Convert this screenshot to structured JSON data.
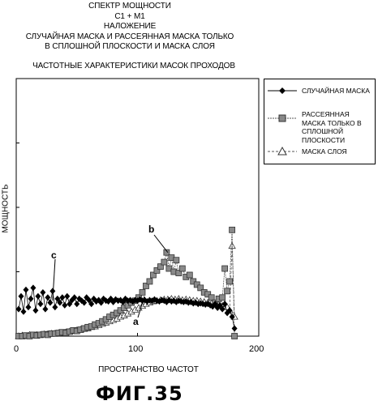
{
  "header": {
    "lines": [
      "СПЕКТР МОЩНОСТИ",
      "C1 + M1",
      "НАЛОЖЕНИЕ",
      "СЛУЧАЙНАЯ МАСКА И РАССЕЯННАЯ МАСКА ТОЛЬКО",
      "В СПЛОШНОЙ ПЛОСКОСТИ И МАСКА СЛОЯ"
    ],
    "subtitle": "ЧАСТОТНЫЕ ХАРАКТЕРИСТИКИ МАСОК ПРОХОДОВ"
  },
  "figure_caption": "ФИГ.35",
  "chart_data": {
    "type": "scatter",
    "title": "СПЕКТР МОЩНОСТИ",
    "xlabel": "ПРОСТРАНСТВО ЧАСТОТ",
    "ylabel": "МОЩНОСТЬ",
    "xlim": [
      0,
      200
    ],
    "ylim": [
      0,
      4
    ],
    "x_ticks": [
      "0",
      "100",
      "200"
    ],
    "legend_position": "right",
    "grid": false,
    "annotations": [
      {
        "text": "a",
        "series": "МАСКА СЛОЯ",
        "x": 115,
        "y": 0.62
      },
      {
        "text": "b",
        "series": "РАССЕЯННАЯ МАСКА ТОЛЬКО В СПЛОШНОЙ ПЛОСКОСТИ",
        "x": 125,
        "y": 1.3
      },
      {
        "text": "c",
        "series": "СЛУЧАЙНАЯ МАСКА",
        "x": 30,
        "y": 0.55
      }
    ],
    "series": [
      {
        "name": "СЛУЧАЙНАЯ МАСКА",
        "marker": "diamond",
        "color": "#000000",
        "x": [
          2,
          4,
          6,
          8,
          10,
          12,
          14,
          16,
          18,
          20,
          22,
          24,
          26,
          28,
          30,
          32,
          34,
          36,
          38,
          40,
          42,
          44,
          46,
          48,
          50,
          52,
          54,
          56,
          58,
          60,
          62,
          64,
          66,
          68,
          70,
          72,
          74,
          76,
          78,
          80,
          82,
          84,
          86,
          88,
          90,
          92,
          94,
          96,
          98,
          100,
          102,
          104,
          106,
          108,
          110,
          112,
          114,
          116,
          118,
          120,
          122,
          124,
          126,
          128,
          130,
          132,
          134,
          136,
          138,
          140,
          142,
          144,
          146,
          148,
          150,
          152,
          154,
          156,
          158,
          160,
          162,
          164,
          166,
          168,
          170,
          172,
          174,
          176,
          178,
          180
        ],
        "y": [
          0.42,
          0.62,
          0.38,
          0.72,
          0.45,
          0.58,
          0.75,
          0.4,
          0.62,
          0.5,
          0.68,
          0.42,
          0.6,
          0.52,
          0.7,
          0.45,
          0.58,
          0.52,
          0.6,
          0.48,
          0.62,
          0.5,
          0.56,
          0.6,
          0.5,
          0.58,
          0.55,
          0.52,
          0.6,
          0.56,
          0.5,
          0.58,
          0.54,
          0.56,
          0.52,
          0.58,
          0.55,
          0.54,
          0.58,
          0.53,
          0.57,
          0.55,
          0.56,
          0.53,
          0.58,
          0.55,
          0.56,
          0.54,
          0.56,
          0.55,
          0.57,
          0.55,
          0.56,
          0.54,
          0.56,
          0.55,
          0.57,
          0.55,
          0.54,
          0.56,
          0.55,
          0.53,
          0.56,
          0.54,
          0.55,
          0.53,
          0.55,
          0.54,
          0.53,
          0.54,
          0.52,
          0.53,
          0.51,
          0.52,
          0.5,
          0.51,
          0.5,
          0.49,
          0.5,
          0.48,
          0.46,
          0.5,
          0.44,
          0.48,
          0.42,
          0.5,
          0.36,
          0.4,
          0.3,
          0.12
        ]
      },
      {
        "name": "РАССЕЯННАЯ МАСКА ТОЛЬКО В СПЛОШНОЙ ПЛОСКОСТИ",
        "marker": "square",
        "color": "#555555",
        "x": [
          2,
          5,
          8,
          11,
          14,
          17,
          20,
          23,
          26,
          29,
          32,
          35,
          38,
          41,
          44,
          47,
          50,
          53,
          56,
          59,
          62,
          65,
          68,
          71,
          74,
          77,
          80,
          83,
          86,
          89,
          92,
          95,
          98,
          101,
          104,
          107,
          110,
          113,
          116,
          119,
          122,
          124,
          126,
          128,
          130,
          132,
          134,
          137,
          140,
          143,
          146,
          149,
          152,
          155,
          158,
          161,
          164,
          167,
          170,
          172,
          174,
          176,
          178,
          180
        ],
        "y": [
          0.0,
          0.0,
          0.01,
          0.0,
          0.02,
          0.01,
          0.02,
          0.03,
          0.02,
          0.04,
          0.04,
          0.05,
          0.06,
          0.05,
          0.07,
          0.09,
          0.08,
          0.1,
          0.12,
          0.14,
          0.15,
          0.18,
          0.2,
          0.23,
          0.26,
          0.3,
          0.33,
          0.36,
          0.4,
          0.44,
          0.48,
          0.52,
          0.55,
          0.6,
          0.68,
          0.78,
          0.85,
          0.95,
          1.02,
          1.08,
          1.15,
          1.3,
          1.05,
          1.22,
          1.0,
          1.18,
          0.98,
          1.05,
          0.92,
          0.95,
          0.85,
          0.8,
          0.75,
          0.68,
          0.65,
          0.6,
          0.52,
          0.58,
          0.6,
          1.05,
          0.7,
          0.85,
          1.65,
          0.0
        ]
      },
      {
        "name": "МАСКА СЛОЯ",
        "marker": "triangle",
        "color": "#555555",
        "x": [
          2,
          5,
          8,
          11,
          14,
          17,
          20,
          23,
          26,
          29,
          32,
          35,
          38,
          41,
          44,
          47,
          50,
          53,
          56,
          59,
          62,
          65,
          68,
          71,
          74,
          77,
          80,
          83,
          86,
          89,
          92,
          95,
          98,
          101,
          104,
          107,
          110,
          113,
          116,
          119,
          122,
          125,
          128,
          131,
          134,
          137,
          140,
          143,
          146,
          149,
          152,
          155,
          158,
          161,
          164,
          167,
          170,
          172,
          174,
          176,
          178,
          180
        ],
        "y": [
          0.0,
          0.01,
          0.0,
          0.02,
          0.01,
          0.02,
          0.02,
          0.03,
          0.03,
          0.04,
          0.04,
          0.05,
          0.05,
          0.06,
          0.07,
          0.08,
          0.09,
          0.1,
          0.11,
          0.12,
          0.14,
          0.15,
          0.17,
          0.19,
          0.21,
          0.23,
          0.25,
          0.27,
          0.3,
          0.32,
          0.35,
          0.38,
          0.41,
          0.44,
          0.47,
          0.5,
          0.52,
          0.54,
          0.55,
          0.56,
          0.57,
          0.57,
          0.58,
          0.57,
          0.58,
          0.56,
          0.57,
          0.56,
          0.55,
          0.55,
          0.54,
          0.53,
          0.52,
          0.51,
          0.5,
          0.49,
          0.47,
          0.5,
          0.45,
          0.4,
          1.4,
          0.3
        ]
      }
    ]
  }
}
